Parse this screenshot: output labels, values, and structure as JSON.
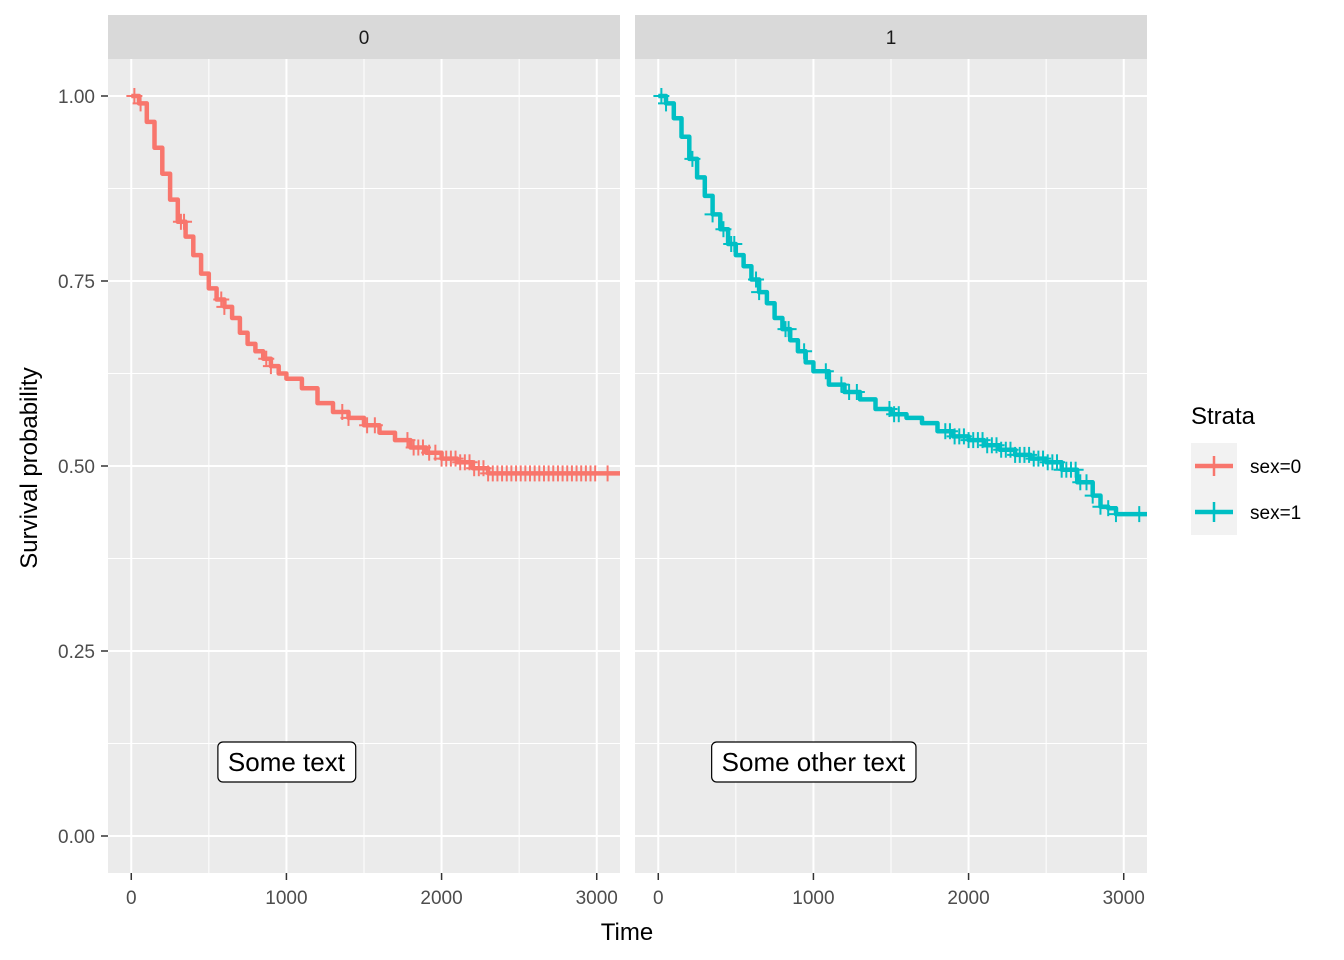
{
  "chart_data": {
    "type": "line",
    "subtype": "kaplan-meier survival curves, faceted",
    "xlabel": "Time",
    "ylabel": "Survival probability",
    "xlim": [
      -150,
      3150
    ],
    "ylim": [
      -0.05,
      1.05
    ],
    "x_ticks": [
      0,
      1000,
      2000,
      3000
    ],
    "x_tick_labels": [
      "0",
      "1000",
      "2000",
      "3000"
    ],
    "y_ticks": [
      0,
      0.25,
      0.5,
      0.75,
      1
    ],
    "y_tick_labels": [
      "0.00",
      "0.25",
      "0.50",
      "0.75",
      "1.00"
    ],
    "grid": true,
    "legend": {
      "title": "Strata",
      "position": "right",
      "entries": [
        {
          "label": "sex=0",
          "color": "#F8766D"
        },
        {
          "label": "sex=1",
          "color": "#00BFC4"
        }
      ]
    },
    "facets": [
      {
        "strip_label": "0",
        "annotation": "Some text",
        "annotation_pos": [
          1000,
          0.1
        ],
        "series": {
          "name": "sex=0",
          "color": "#F8766D",
          "x": [
            0,
            50,
            100,
            150,
            200,
            250,
            300,
            350,
            400,
            450,
            500,
            550,
            600,
            650,
            700,
            750,
            800,
            850,
            900,
            950,
            1000,
            1100,
            1200,
            1300,
            1400,
            1500,
            1600,
            1700,
            1800,
            1900,
            2000,
            2100,
            2200,
            2300,
            2400,
            2500,
            2600,
            2700,
            2800,
            2900,
            3000,
            3150
          ],
          "y": [
            1.0,
            0.99,
            0.965,
            0.93,
            0.895,
            0.86,
            0.83,
            0.81,
            0.785,
            0.76,
            0.74,
            0.725,
            0.715,
            0.7,
            0.68,
            0.665,
            0.655,
            0.645,
            0.635,
            0.625,
            0.618,
            0.605,
            0.585,
            0.573,
            0.565,
            0.555,
            0.545,
            0.535,
            0.525,
            0.518,
            0.51,
            0.505,
            0.497,
            0.49,
            0.49,
            0.49,
            0.49,
            0.49,
            0.49,
            0.49,
            0.49,
            0.49
          ],
          "censor_x": [
            20,
            60,
            320,
            340,
            580,
            600,
            870,
            900,
            1360,
            1400,
            1520,
            1570,
            1780,
            1820,
            1850,
            1880,
            1920,
            1960,
            2000,
            2030,
            2060,
            2090,
            2120,
            2150,
            2180,
            2210,
            2240,
            2270,
            2300,
            2330,
            2360,
            2390,
            2420,
            2450,
            2480,
            2510,
            2540,
            2570,
            2600,
            2630,
            2660,
            2690,
            2720,
            2750,
            2780,
            2810,
            2840,
            2870,
            2900,
            2930,
            2960,
            2990,
            3070
          ]
        }
      },
      {
        "strip_label": "1",
        "annotation": "Some other text",
        "annotation_pos": [
          1000,
          0.1
        ],
        "series": {
          "name": "sex=1",
          "color": "#00BFC4",
          "x": [
            0,
            50,
            100,
            150,
            200,
            250,
            300,
            350,
            400,
            450,
            500,
            550,
            600,
            650,
            700,
            750,
            800,
            850,
            900,
            950,
            1000,
            1100,
            1200,
            1300,
            1400,
            1500,
            1600,
            1700,
            1800,
            1900,
            2000,
            2100,
            2200,
            2300,
            2400,
            2500,
            2600,
            2700,
            2800,
            2850,
            2900,
            2950,
            3000,
            3150
          ],
          "y": [
            1.0,
            0.99,
            0.97,
            0.945,
            0.915,
            0.89,
            0.865,
            0.84,
            0.82,
            0.8,
            0.785,
            0.77,
            0.752,
            0.735,
            0.72,
            0.7,
            0.685,
            0.67,
            0.655,
            0.64,
            0.628,
            0.61,
            0.6,
            0.59,
            0.577,
            0.57,
            0.565,
            0.558,
            0.547,
            0.54,
            0.535,
            0.528,
            0.522,
            0.515,
            0.51,
            0.505,
            0.495,
            0.478,
            0.46,
            0.445,
            0.443,
            0.435,
            0.435,
            0.435
          ],
          "censor_x": [
            20,
            50,
            220,
            350,
            420,
            470,
            490,
            630,
            650,
            820,
            840,
            940,
            1080,
            1180,
            1230,
            1280,
            1490,
            1520,
            1550,
            1850,
            1880,
            1910,
            1940,
            1970,
            2000,
            2030,
            2060,
            2090,
            2120,
            2150,
            2180,
            2210,
            2240,
            2270,
            2300,
            2330,
            2360,
            2390,
            2420,
            2450,
            2480,
            2510,
            2540,
            2570,
            2600,
            2630,
            2660,
            2690,
            2720,
            2760,
            2800,
            2850,
            2900,
            2950,
            3100
          ]
        }
      }
    ]
  }
}
